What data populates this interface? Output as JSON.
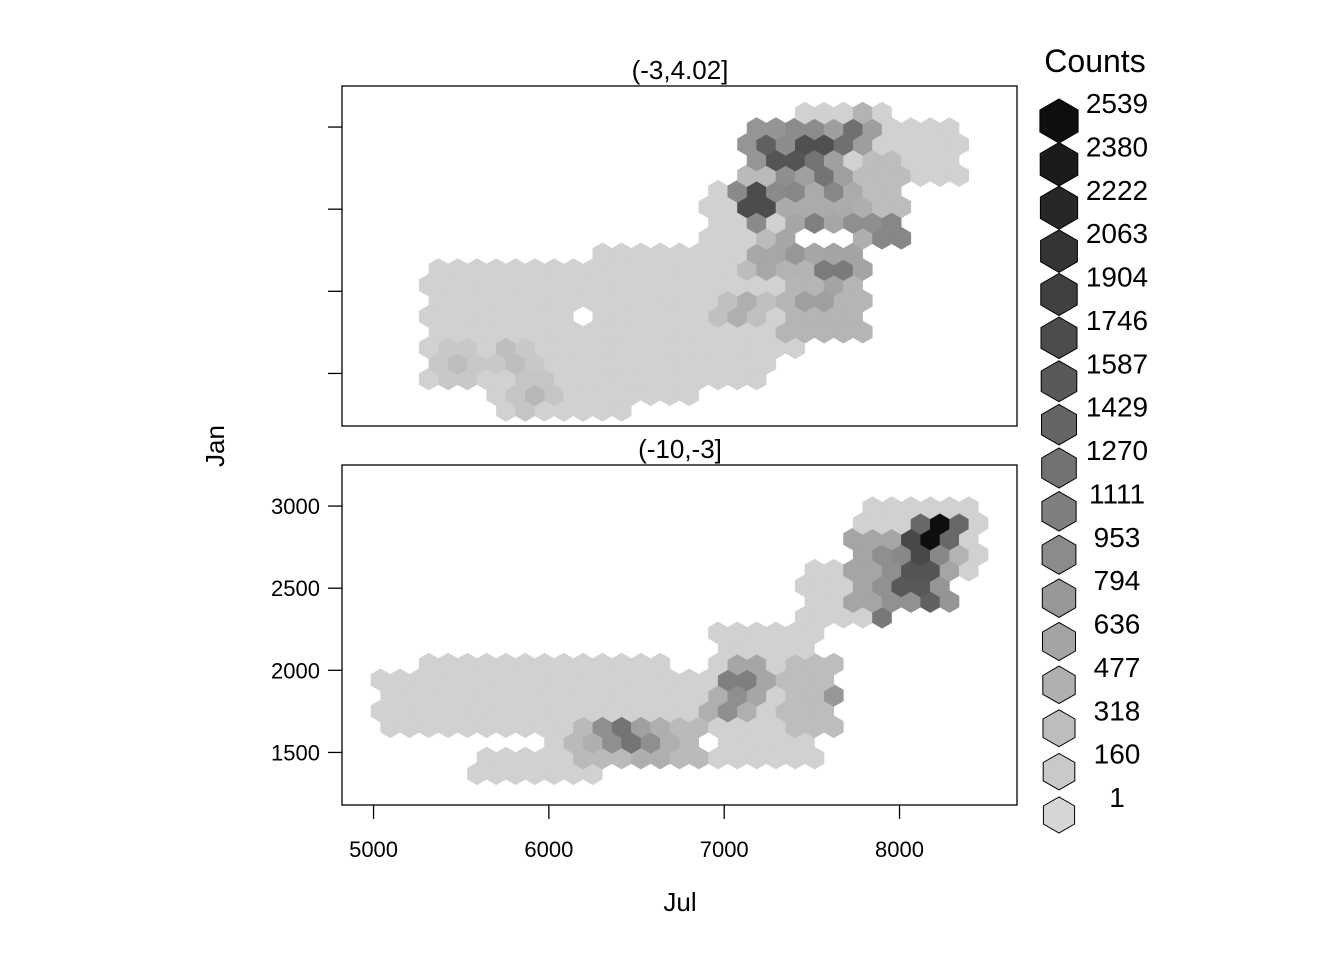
{
  "chart_data": {
    "type": "heatmap",
    "subtype": "hexbin-lattice",
    "xlabel": "Jul",
    "ylabel": "Jan",
    "xlim": [
      4820,
      8670
    ],
    "ylim": [
      1180,
      3250
    ],
    "x_ticks": [
      5000,
      6000,
      7000,
      8000
    ],
    "y_ticks": [
      1500,
      2000,
      2500,
      3000
    ],
    "grid": false,
    "legend": {
      "title": "Counts",
      "position": "right",
      "levels": [
        1,
        160,
        318,
        477,
        636,
        794,
        953,
        1111,
        1270,
        1429,
        1587,
        1746,
        1904,
        2063,
        2222,
        2380,
        2539
      ]
    },
    "panels": [
      {
        "strip": "(-3,4.02]",
        "y_tick_labels_shown": false,
        "hex_step_x": 110,
        "hex_step_y": 110,
        "regions": [
          {
            "x": [
              5280,
              7250
            ],
            "y": [
              1450,
              2200
            ],
            "count": 60
          },
          {
            "x": [
              5650,
              6450
            ],
            "y": [
              1230,
              1500
            ],
            "count": 60
          },
          {
            "x": [
              6200,
              6800
            ],
            "y": [
              1350,
              1650
            ],
            "count": 60
          },
          {
            "x": [
              5400,
              6050
            ],
            "y": [
              1550,
              1750
            ],
            "count": 60
          },
          {
            "x": [
              6300,
              7050
            ],
            "y": [
              2050,
              2320
            ],
            "count": 60
          },
          {
            "x": [
              6900,
              7450
            ],
            "y": [
              1650,
              2700
            ],
            "count": 60
          },
          {
            "x": [
              7450,
              8000
            ],
            "y": [
              2400,
              3100
            ],
            "count": 60
          },
          {
            "x": [
              7850,
              8350
            ],
            "y": [
              2650,
              3050
            ],
            "count": 60
          },
          {
            "x": [
              7100,
              7550
            ],
            "y": [
              2600,
              3000
            ],
            "count": 360
          },
          {
            "x": [
              7350,
              7800
            ],
            "y": [
              1750,
              2300
            ],
            "count": 420
          },
          {
            "x": [
              7750,
              8050
            ],
            "y": [
              2300,
              2800
            ],
            "count": 320
          }
        ],
        "hotspots": [
          {
            "x": 7500,
            "y": 2900,
            "count": 1700
          },
          {
            "x": 7250,
            "y": 2900,
            "count": 1500
          },
          {
            "x": 7350,
            "y": 2800,
            "count": 1650
          },
          {
            "x": 7550,
            "y": 2750,
            "count": 1250
          },
          {
            "x": 7600,
            "y": 2900,
            "count": 1200
          },
          {
            "x": 7700,
            "y": 2950,
            "count": 1300
          },
          {
            "x": 7600,
            "y": 2600,
            "count": 1000
          },
          {
            "x": 7400,
            "y": 2600,
            "count": 1000
          },
          {
            "x": 7200,
            "y": 2550,
            "count": 1750
          },
          {
            "x": 7500,
            "y": 2350,
            "count": 1100
          },
          {
            "x": 7800,
            "y": 2400,
            "count": 900
          },
          {
            "x": 7950,
            "y": 2350,
            "count": 1000
          },
          {
            "x": 7650,
            "y": 2150,
            "count": 1150
          },
          {
            "x": 7400,
            "y": 2200,
            "count": 800
          },
          {
            "x": 7800,
            "y": 3200,
            "count": 800
          },
          {
            "x": 7250,
            "y": 2200,
            "count": 600
          },
          {
            "x": 7100,
            "y": 1900,
            "count": 500
          },
          {
            "x": 7500,
            "y": 1950,
            "count": 700
          },
          {
            "x": 5500,
            "y": 1550,
            "count": 320
          },
          {
            "x": 5900,
            "y": 1400,
            "count": 400
          },
          {
            "x": 5800,
            "y": 1600,
            "count": 320
          }
        ],
        "holes": [
          {
            "x": 6200,
            "y": 1850
          }
        ]
      },
      {
        "strip": "(-10,-3]",
        "y_tick_labels_shown": true,
        "hex_step_x": 110,
        "hex_step_y": 110,
        "regions": [
          {
            "x": [
              5000,
              7050
            ],
            "y": [
              1650,
              1950
            ],
            "count": 60
          },
          {
            "x": [
              5250,
              6650
            ],
            "y": [
              1850,
              2060
            ],
            "count": 60
          },
          {
            "x": [
              5550,
              6350
            ],
            "y": [
              1280,
              1550
            ],
            "count": 60
          },
          {
            "x": [
              6000,
              6850
            ],
            "y": [
              1400,
              1700
            ],
            "count": 60
          },
          {
            "x": [
              6950,
              7550
            ],
            "y": [
              1450,
              2300
            ],
            "count": 60
          },
          {
            "x": [
              7450,
              8000
            ],
            "y": [
              2250,
              2700
            ],
            "count": 60
          },
          {
            "x": [
              7750,
              8500
            ],
            "y": [
              2550,
              3000
            ],
            "count": 60
          },
          {
            "x": [
              7300,
              7650
            ],
            "y": [
              1650,
              2100
            ],
            "count": 320
          },
          {
            "x": [
              6100,
              6900
            ],
            "y": [
              1450,
              1750
            ],
            "count": 360
          },
          {
            "x": [
              7700,
              8300
            ],
            "y": [
              2350,
              2800
            ],
            "count": 620
          }
        ],
        "hotspots": [
          {
            "x": 8200,
            "y": 2850,
            "count": 2539
          },
          {
            "x": 8100,
            "y": 2750,
            "count": 1800
          },
          {
            "x": 8100,
            "y": 2600,
            "count": 1650
          },
          {
            "x": 8050,
            "y": 2500,
            "count": 1600
          },
          {
            "x": 8150,
            "y": 2450,
            "count": 1500
          },
          {
            "x": 8150,
            "y": 2250,
            "count": 1650
          },
          {
            "x": 7950,
            "y": 2300,
            "count": 1200
          },
          {
            "x": 8050,
            "y": 2200,
            "count": 1300
          },
          {
            "x": 7900,
            "y": 2050,
            "count": 1250
          },
          {
            "x": 7750,
            "y": 1800,
            "count": 1450
          },
          {
            "x": 7800,
            "y": 1950,
            "count": 1000
          },
          {
            "x": 6450,
            "y": 1600,
            "count": 1250
          },
          {
            "x": 6600,
            "y": 1550,
            "count": 900
          },
          {
            "x": 6350,
            "y": 1600,
            "count": 900
          },
          {
            "x": 7100,
            "y": 1950,
            "count": 1100
          },
          {
            "x": 7050,
            "y": 1800,
            "count": 900
          },
          {
            "x": 6600,
            "y": 1400,
            "count": 700
          },
          {
            "x": 8250,
            "y": 2750,
            "count": 800
          },
          {
            "x": 7900,
            "y": 2700,
            "count": 900
          }
        ],
        "holes": []
      }
    ]
  }
}
